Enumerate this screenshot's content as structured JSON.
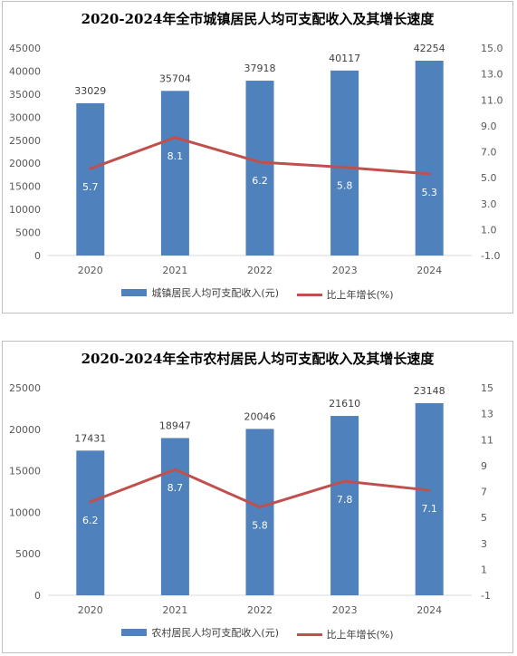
{
  "chart_data": [
    {
      "type": "bar",
      "title": "2020-2024年全市城镇居民人均可支配收入及其增长速度",
      "categories": [
        "2020",
        "2021",
        "2022",
        "2023",
        "2024"
      ],
      "series": [
        {
          "name": "城镇居民人均可支配收入(元)",
          "type": "bar",
          "axis": "left",
          "values": [
            33029,
            35704,
            37918,
            40117,
            42254
          ],
          "labels": [
            "33029",
            "35704",
            "37918",
            "40117",
            "42254"
          ]
        },
        {
          "name": "比上年增长(%)",
          "type": "line",
          "axis": "right",
          "values": [
            5.7,
            8.1,
            6.2,
            5.8,
            5.3
          ],
          "labels": [
            "5.7",
            "8.1",
            "6.2",
            "5.8",
            "5.3"
          ]
        }
      ],
      "ylim": [
        0,
        45000
      ],
      "y_ticks": [
        "0",
        "5000",
        "10000",
        "15000",
        "20000",
        "25000",
        "30000",
        "35000",
        "40000",
        "45000"
      ],
      "y2lim": [
        -1.0,
        15.0
      ],
      "y2_ticks": [
        "-1.0",
        "1.0",
        "3.0",
        "5.0",
        "7.0",
        "9.0",
        "11.0",
        "13.0",
        "15.0"
      ],
      "grid": false,
      "legend_position": "bottom",
      "colors": {
        "bar": "#4f81bd",
        "line": "#c0504d"
      }
    },
    {
      "type": "bar",
      "title": "2020-2024年全市农村居民人均可支配收入及其增长速度",
      "categories": [
        "2020",
        "2021",
        "2022",
        "2023",
        "2024"
      ],
      "series": [
        {
          "name": "农村居民人均可支配收入(元)",
          "type": "bar",
          "axis": "left",
          "values": [
            17431,
            18947,
            20046,
            21610,
            23148
          ],
          "labels": [
            "17431",
            "18947",
            "20046",
            "21610",
            "23148"
          ]
        },
        {
          "name": "比上年增长(%)",
          "type": "line",
          "axis": "right",
          "values": [
            6.2,
            8.7,
            5.8,
            7.8,
            7.1
          ],
          "labels": [
            "6.2",
            "8.7",
            "5.8",
            "7.8",
            "7.1"
          ]
        }
      ],
      "ylim": [
        0,
        25000
      ],
      "y_ticks": [
        "0",
        "5000",
        "10000",
        "15000",
        "20000",
        "25000"
      ],
      "y2lim": [
        -1,
        15
      ],
      "y2_ticks": [
        "-1",
        "1",
        "3",
        "5",
        "7",
        "9",
        "11",
        "13",
        "15"
      ],
      "grid": false,
      "legend_position": "bottom",
      "colors": {
        "bar": "#4f81bd",
        "line": "#c0504d"
      }
    }
  ]
}
